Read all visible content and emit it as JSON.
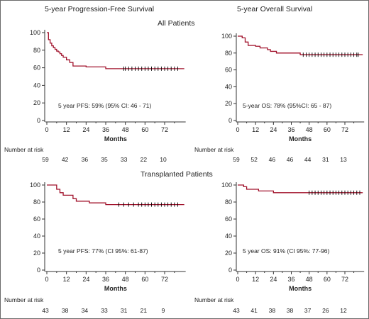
{
  "figure": {
    "col_titles": [
      "5-year Progression-Free Survival",
      "5-year Overall Survival"
    ],
    "section_titles": [
      "All Patients",
      "Transplanted Patients"
    ]
  },
  "colors": {
    "curve": "#a0102a",
    "axis": "#333333",
    "censor": "#000000"
  },
  "chart_data": [
    {
      "type": "line",
      "id": "pfs-all",
      "xlabel": "Months",
      "ylabel": "",
      "xlim": [
        0,
        84
      ],
      "ylim": [
        0,
        100
      ],
      "xticks": [
        0,
        12,
        24,
        36,
        48,
        60,
        72
      ],
      "yticks": [
        0,
        20,
        40,
        60,
        80,
        100
      ],
      "annotation": "5 year PFS: 59% (95% CI: 46 - 71)",
      "series": [
        {
          "x": [
            0,
            1,
            2,
            3,
            4,
            5,
            6,
            7,
            8,
            9,
            10,
            12,
            14,
            16,
            22,
            24,
            26,
            36,
            84
          ],
          "y": [
            100,
            92,
            88,
            85,
            83,
            81,
            79,
            78,
            76,
            74,
            72,
            69,
            66,
            62,
            62,
            61,
            61,
            59,
            59
          ]
        }
      ],
      "censor_x": [
        47,
        48,
        50,
        52,
        54,
        56,
        58,
        60,
        62,
        64,
        66,
        68,
        70,
        72,
        74,
        76,
        78,
        80
      ],
      "risk": {
        "label": "Number at risk",
        "values": [
          59,
          42,
          36,
          35,
          33,
          22,
          10
        ]
      }
    },
    {
      "type": "line",
      "id": "os-all",
      "xlabel": "Months",
      "ylabel": "",
      "xlim": [
        0,
        84
      ],
      "ylim": [
        0,
        100
      ],
      "xticks": [
        0,
        12,
        24,
        36,
        48,
        60,
        72
      ],
      "yticks": [
        0,
        20,
        40,
        60,
        80,
        100
      ],
      "annotation": "5-year OS: 78% (95%CI: 65 - 87)",
      "series": [
        {
          "x": [
            0,
            3,
            5,
            7,
            12,
            15,
            20,
            22,
            26,
            42,
            84
          ],
          "y": [
            100,
            98,
            93,
            89,
            88,
            86,
            84,
            82,
            80,
            78,
            78
          ]
        }
      ],
      "censor_x": [
        44,
        46,
        48,
        50,
        52,
        54,
        56,
        58,
        60,
        62,
        64,
        66,
        68,
        70,
        72,
        74,
        76,
        78,
        80,
        81
      ],
      "risk": {
        "label": "Number at risk",
        "values": [
          59,
          52,
          46,
          46,
          44,
          31,
          13
        ]
      }
    },
    {
      "type": "line",
      "id": "pfs-transplanted",
      "xlabel": "Months",
      "ylabel": "",
      "xlim": [
        0,
        84
      ],
      "ylim": [
        0,
        100
      ],
      "xticks": [
        0,
        12,
        24,
        36,
        48,
        60,
        72
      ],
      "yticks": [
        0,
        20,
        40,
        60,
        80,
        100
      ],
      "annotation": "5 year PFS: 77% (CI 95%: 61-87)",
      "series": [
        {
          "x": [
            0,
            6,
            8,
            10,
            16,
            18,
            24,
            26,
            30,
            36,
            84
          ],
          "y": [
            100,
            95,
            91,
            88,
            84,
            81,
            81,
            79,
            79,
            77,
            77
          ]
        }
      ],
      "censor_x": [
        44,
        47,
        50,
        53,
        56,
        58,
        60,
        62,
        64,
        66,
        68,
        70,
        72,
        74,
        76,
        78,
        80
      ],
      "risk": {
        "label": "Number at risk",
        "values": [
          43,
          38,
          34,
          33,
          31,
          21,
          9
        ]
      }
    },
    {
      "type": "line",
      "id": "os-transplanted",
      "xlabel": "Months",
      "ylabel": "",
      "xlim": [
        0,
        84
      ],
      "ylim": [
        0,
        100
      ],
      "xticks": [
        0,
        12,
        24,
        36,
        48,
        60,
        72
      ],
      "yticks": [
        0,
        20,
        40,
        60,
        80,
        100
      ],
      "annotation": "5 year OS: 91% (CI 95%: 77-96)",
      "series": [
        {
          "x": [
            0,
            4,
            6,
            14,
            24,
            84
          ],
          "y": [
            100,
            98,
            95,
            93,
            91,
            91
          ]
        }
      ],
      "censor_x": [
        48,
        50,
        52,
        54,
        56,
        58,
        60,
        62,
        64,
        66,
        68,
        70,
        72,
        74,
        76,
        78,
        80,
        82
      ],
      "risk": {
        "label": "Number at risk",
        "values": [
          43,
          41,
          38,
          38,
          37,
          26,
          12
        ]
      }
    }
  ]
}
